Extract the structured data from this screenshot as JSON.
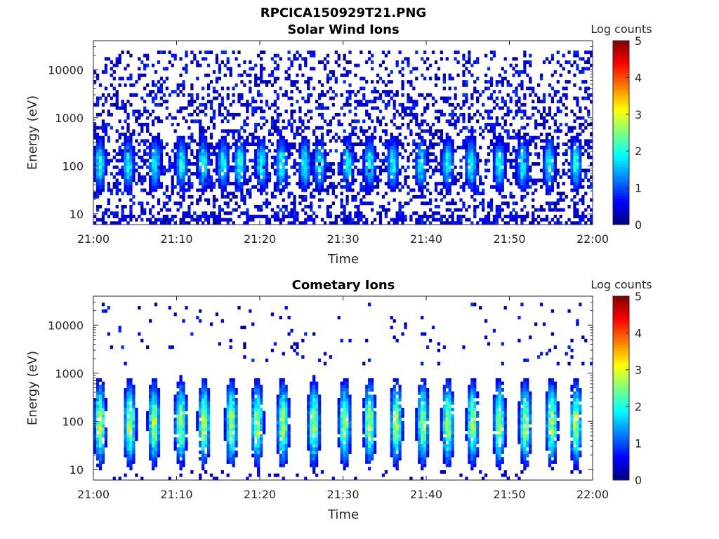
{
  "figure": {
    "title": "RPCICA150929T21.PNG"
  },
  "chart_data": [
    {
      "type": "heatmap",
      "title": "Solar Wind Ions",
      "xlabel": "Time",
      "ylabel": "Energy (eV)",
      "x_ticks": [
        "21:00",
        "21:10",
        "21:20",
        "21:30",
        "21:40",
        "21:50",
        "22:00"
      ],
      "x_range_minutes": [
        0,
        60
      ],
      "y_scale": "log",
      "y_ticks": [
        "10",
        "100",
        "1000",
        "10000"
      ],
      "y_range": [
        6,
        40000
      ],
      "colorbar": {
        "label": "Log counts",
        "ticks": [
          "0",
          "1",
          "2",
          "3",
          "4",
          "5"
        ],
        "range": [
          0,
          5
        ],
        "colormap": "jet"
      },
      "pattern": {
        "background_level": 0.6,
        "background_min_energy": 6,
        "background_max_energy": 25000,
        "burst_minutes": [
          0.8,
          4.2,
          7.4,
          10.6,
          13.2,
          15.6,
          17.6,
          20.2,
          22.6,
          25.4,
          27.2,
          30.6,
          33.2,
          36.0,
          39.4,
          42.6,
          45.4,
          48.8,
          51.6,
          54.8,
          58.0
        ],
        "burst_peak_log_counts": 2.2,
        "burst_energy_range": [
          30,
          400
        ]
      }
    },
    {
      "type": "heatmap",
      "title": "Cometary Ions",
      "xlabel": "Time",
      "ylabel": "Energy (eV)",
      "x_ticks": [
        "21:00",
        "21:10",
        "21:20",
        "21:30",
        "21:40",
        "21:50",
        "22:00"
      ],
      "x_range_minutes": [
        0,
        60
      ],
      "y_scale": "log",
      "y_ticks": [
        "10",
        "100",
        "1000",
        "10000"
      ],
      "y_range": [
        6,
        40000
      ],
      "colorbar": {
        "label": "Log counts",
        "ticks": [
          "0",
          "1",
          "2",
          "3",
          "4",
          "5"
        ],
        "range": [
          0,
          5
        ],
        "colormap": "jet"
      },
      "pattern": {
        "background_level": 0.03,
        "background_min_energy": 1500,
        "background_max_energy": 30000,
        "burst_minutes": [
          0.8,
          4.4,
          7.3,
          10.5,
          13.3,
          16.6,
          19.7,
          22.8,
          26.5,
          30.2,
          33.2,
          36.4,
          39.6,
          42.6,
          45.6,
          48.8,
          51.9,
          55.1,
          58.0
        ],
        "burst_peak_log_counts": 3.0,
        "burst_energy_range": [
          12,
          700
        ]
      }
    }
  ]
}
